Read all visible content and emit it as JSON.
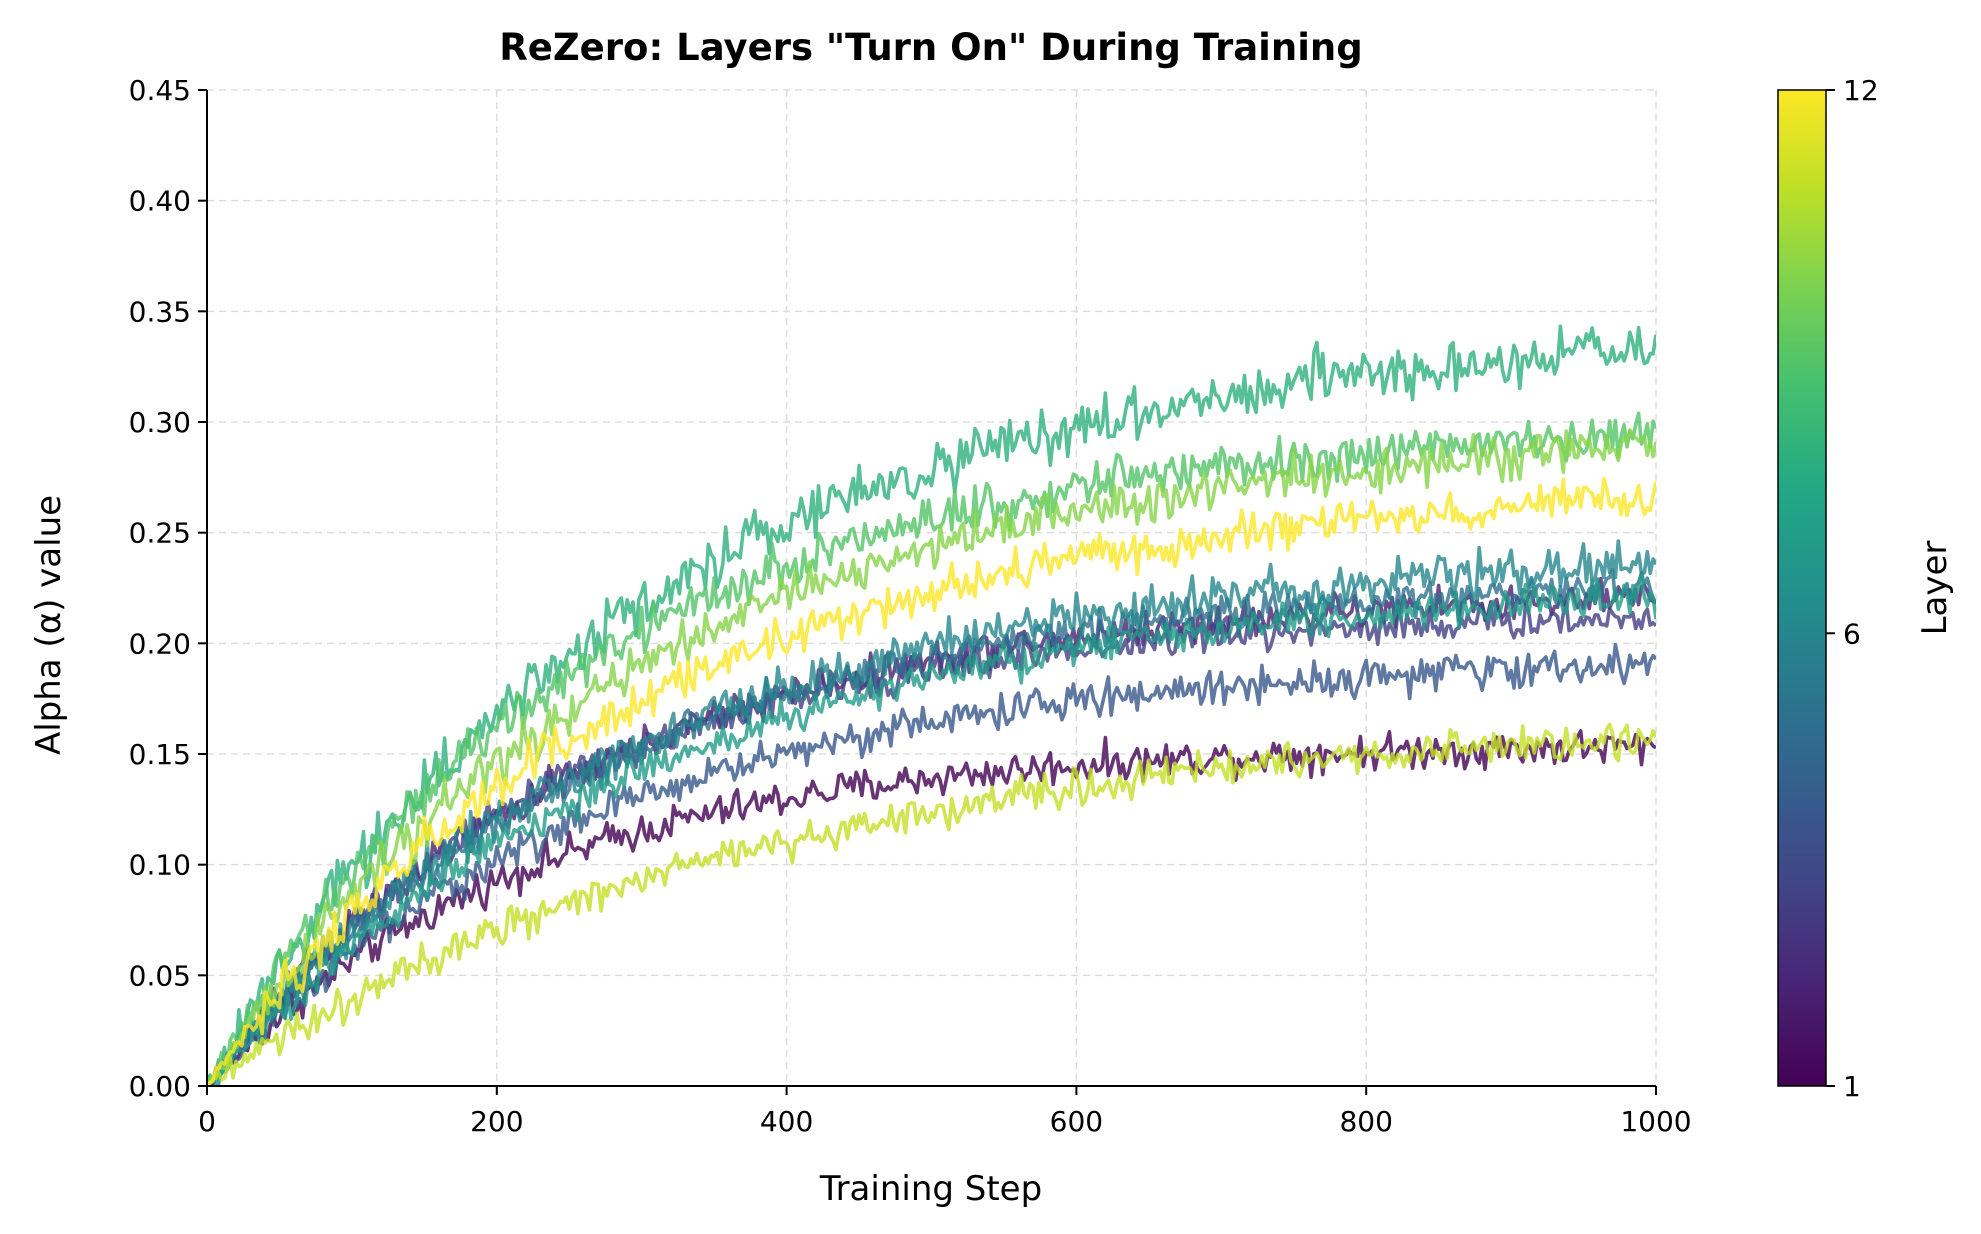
{
  "chart_data": {
    "type": "line",
    "title": "ReZero: Layers \"Turn On\" During Training",
    "xlabel": "Training Step",
    "ylabel": "Alpha (α) value",
    "xlim": [
      0,
      1000
    ],
    "ylim": [
      0,
      0.45
    ],
    "x_ticks": [
      "0",
      "200",
      "400",
      "600",
      "800",
      "1000"
    ],
    "y_ticks": [
      "0.00",
      "0.05",
      "0.10",
      "0.15",
      "0.20",
      "0.25",
      "0.30",
      "0.35",
      "0.40",
      "0.45"
    ],
    "grid": true,
    "grid_style": "dashed",
    "noise": "high-frequency jitter on every series",
    "colorbar": {
      "label": "Layer",
      "colormap": "viridis",
      "range": [
        1,
        12
      ],
      "ticks": [
        "1",
        "6",
        "12"
      ]
    },
    "series": [
      {
        "layer": 1,
        "plateau": 0.155,
        "tau": 220,
        "noise": 0.004
      },
      {
        "layer": 2,
        "plateau": 0.225,
        "tau": 260,
        "noise": 0.004
      },
      {
        "layer": 3,
        "plateau": 0.215,
        "tau": 240,
        "noise": 0.004
      },
      {
        "layer": 4,
        "plateau": 0.195,
        "tau": 270,
        "noise": 0.004
      },
      {
        "layer": 5,
        "plateau": 0.232,
        "tau": 280,
        "noise": 0.004
      },
      {
        "layer": 6,
        "plateau": 0.245,
        "tau": 300,
        "noise": 0.005
      },
      {
        "layer": 7,
        "plateau": 0.23,
        "tau": 310,
        "noise": 0.004
      },
      {
        "layer": 8,
        "plateau": 0.345,
        "tau": 300,
        "noise": 0.006
      },
      {
        "layer": 9,
        "plateau": 0.3,
        "tau": 260,
        "noise": 0.005
      },
      {
        "layer": 10,
        "plateau": 0.3,
        "tau": 300,
        "noise": 0.005
      },
      {
        "layer": 11,
        "plateau": 0.17,
        "tau": 380,
        "noise": 0.004
      },
      {
        "layer": 12,
        "plateau": 0.275,
        "tau": 300,
        "noise": 0.005
      }
    ]
  }
}
